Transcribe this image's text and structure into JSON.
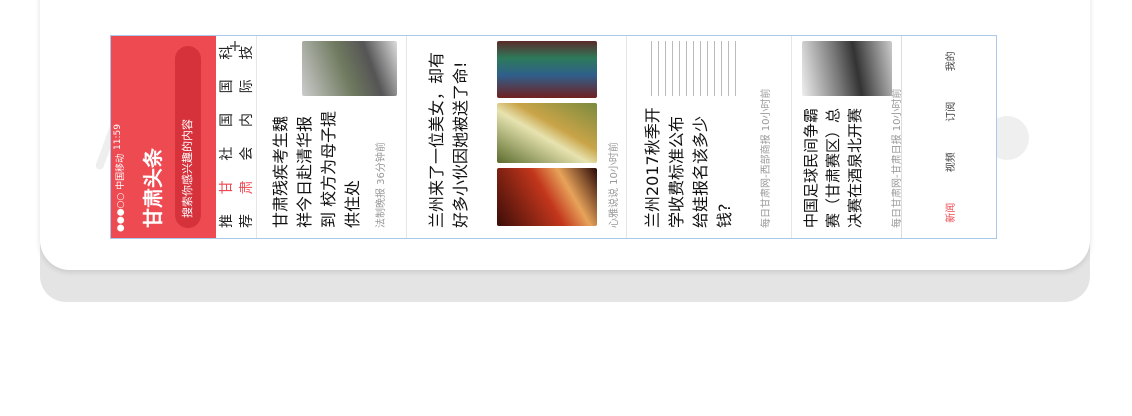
{
  "status": {
    "carrier": "●●●○○ 中国移动",
    "time": "11:59"
  },
  "header": {
    "title": "甘肃头条",
    "search": "搜索你感兴趣的内容"
  },
  "tabs": [
    "推荐",
    "甘肃",
    "社会",
    "国内",
    "国际",
    "科技"
  ],
  "news": [
    {
      "title": "甘肃残疾考生魏祥今日赴清华报到 校方为母子提供住处",
      "source": "法制晚报",
      "time": "36分钟前"
    },
    {
      "title": "兰州来了一位美女，却有好多小伙因她被送了命!",
      "source": "心雅说说",
      "time": "10小时前"
    },
    {
      "title": "兰州2017秋季开学收费标准公布 给娃报名该多少钱?",
      "source": "每日甘肃网-西部商报",
      "time": "10小时前"
    },
    {
      "title": "中国足球民间争霸赛（甘肃赛区）总决赛在酒泉北开赛",
      "source": "每日甘肃网-甘肃日报",
      "time": "10小时前"
    }
  ],
  "nav": [
    "新闻",
    "视频",
    "订阅",
    "我的"
  ]
}
